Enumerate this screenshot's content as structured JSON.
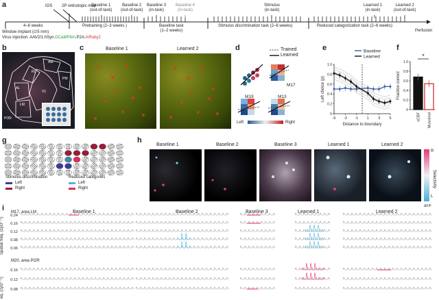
{
  "panel_labels": {
    "a": "a",
    "b": "b",
    "c": "c",
    "d": "d",
    "e": "e",
    "f": "f",
    "g": "g",
    "h": "h",
    "i": "i"
  },
  "timeline": {
    "stages": {
      "ios": "IOS",
      "retino": "2P retinotopic map",
      "b1": "Baseline 1\n(out-of-task)",
      "b2": "Baseline 2\n(out-of-task)",
      "b3": "Baseline 3\n(in-task)",
      "b4": "Baseline 4\n(in-task)",
      "stim": "Stimulus\n(in-task)",
      "l1": "Learned 1\n(in-task)",
      "l2": "Learned 2\n(out-of-task)"
    },
    "periods": {
      "p0": "4–6 weeks",
      "p1": "Pretraining (2–3 weeks )",
      "p2": "Baseline task\n(1–2 weeks)",
      "p3": "Stimulus discrimination task (2–6 weeks)",
      "p4": "Reduced categorization task (2–6 weeks)",
      "end": "Perfusion"
    },
    "window": "Window implant (∅5 mm)",
    "virus_prefix": "Virus injection: AAV2/1.hSyn.",
    "virus_gcamp": "GCaMP6m",
    "virus_mid": ".P2A.",
    "virus_ruby": "mRuby2"
  },
  "panel_b": {
    "areas": [
      "AM",
      "RL",
      "PM",
      "AL",
      "V1",
      "LM",
      "POR"
    ]
  },
  "panel_c": {
    "left_title": "Baseline 1",
    "right_title": "Learned 2"
  },
  "panel_d": {
    "legend_trained": "Trained",
    "legend_learned": "Learned",
    "mice": [
      "M17",
      "M19",
      "M13"
    ],
    "cbar_left": "Left",
    "cbar_right": "Right"
  },
  "panel_e": {
    "legend": [
      "Baseline",
      "Learned"
    ],
    "ylabel": "Left choice (p)",
    "xlabel": "Distance to boundary",
    "xticks": [
      "-5",
      "-3",
      "-1",
      "1",
      "3",
      "5"
    ],
    "yticks": [
      "0",
      "0.2",
      "0.4",
      "0.6",
      "0.8",
      "1.0"
    ],
    "colors": {
      "baseline": "#3a5ca8",
      "learned": "#111111"
    }
  },
  "panel_f": {
    "ylabel": "Fraction correct",
    "yticks": [
      "0",
      "0.2",
      "0.4",
      "0.6",
      "0.8",
      "1.0"
    ],
    "categories": [
      "sCBF",
      "Muscimol"
    ],
    "values": [
      0.68,
      0.54
    ],
    "sig": "*"
  },
  "panel_g": {
    "stim_title": "Stimulus discrimination",
    "cat_title": "Reduced categories",
    "left": "Left",
    "right": "Right"
  },
  "panel_h": {
    "titles": [
      "Baseline 1",
      "Baseline 2",
      "Baseline 3",
      "Learned 1",
      "Learned 2"
    ],
    "cbar_top": "R",
    "cbar_bottom": "L",
    "cbar_label": "Selectivity",
    "cbar_unit": "ΔF/F"
  },
  "panel_i": {
    "titles": [
      "Baseline 1",
      "Baseline 2",
      "Baseline 3",
      "Learned 1",
      "Learned 2"
    ],
    "m17": "M17, area LM",
    "m20": "M20, area POR",
    "ylabel_top": "Spatial freq. (cycl°⁻¹)",
    "ylabel_bot": "eq. (cycl°⁻¹)",
    "rows_top": [
      "0.24",
      "0.16",
      "0.12",
      "0.08",
      "0.06"
    ],
    "rows_bot": [
      "0.16",
      "0.12",
      "0.08"
    ]
  },
  "chart_data": [
    {
      "type": "line",
      "xlabel": "Distance to boundary",
      "ylabel": "Left choice (p)",
      "x": [
        -5,
        -4,
        -3,
        -2,
        -1,
        1,
        2,
        3,
        4,
        5
      ],
      "ylim": [
        0,
        1
      ],
      "series": [
        {
          "name": "Baseline",
          "values": [
            0.5,
            0.5,
            0.52,
            0.5,
            0.5,
            0.52,
            0.5,
            0.5,
            0.55,
            0.55
          ]
        },
        {
          "name": "Learned",
          "values": [
            0.82,
            0.78,
            0.72,
            0.65,
            0.55,
            0.42,
            0.3,
            0.25,
            0.22,
            0.25
          ]
        }
      ]
    },
    {
      "type": "bar",
      "ylabel": "Fraction correct",
      "categories": [
        "sCBF",
        "Muscimol"
      ],
      "values": [
        0.68,
        0.54
      ],
      "ylim": [
        0,
        1
      ]
    }
  ]
}
